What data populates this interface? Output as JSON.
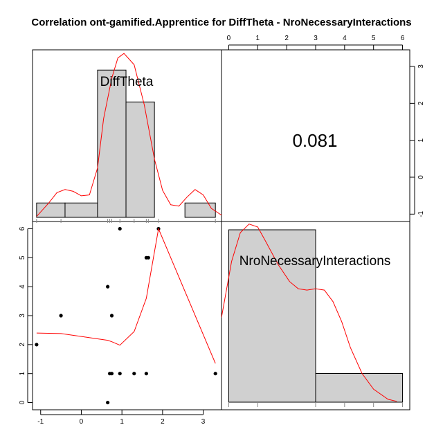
{
  "chart_data": {
    "type": "scatter-matrix",
    "title": "Correlation ont-gamified.Apprentice for DiffTheta - NroNecessaryInteractions",
    "variables": [
      "DiffTheta",
      "NroNecessaryInteractions"
    ],
    "correlation": "0.081",
    "axes": {
      "bottom": {
        "ticks": [
          -1,
          0,
          1,
          2,
          3
        ],
        "labels": [
          "-1",
          "0",
          "1",
          "2",
          "3"
        ],
        "range": [
          -1.2,
          3.45
        ]
      },
      "top": {
        "ticks": [
          0,
          1,
          2,
          3,
          4,
          5,
          6
        ],
        "labels": [
          "0",
          "1",
          "2",
          "3",
          "4",
          "5",
          "6"
        ],
        "range": [
          -0.25,
          6.25
        ]
      },
      "left": {
        "ticks": [
          0,
          1,
          2,
          3,
          4,
          5,
          6
        ],
        "labels": [
          "0",
          "1",
          "2",
          "3",
          "4",
          "5",
          "6"
        ],
        "range": [
          -0.25,
          6.25
        ]
      },
      "right": {
        "ticks": [
          -1,
          0,
          1,
          2,
          3
        ],
        "labels": [
          "-1",
          "0",
          "1",
          "2",
          "3"
        ],
        "range": [
          -1.2,
          3.45
        ]
      }
    },
    "scatter": {
      "x": [
        -1.1,
        -0.5,
        0.65,
        0.7,
        0.75,
        0.65,
        0.75,
        0.95,
        0.95,
        1.3,
        1.6,
        1.6,
        1.65,
        1.9,
        3.3
      ],
      "y": [
        2,
        3,
        0,
        1,
        3,
        4,
        1,
        1,
        6,
        1,
        1,
        5,
        5,
        6,
        1
      ]
    },
    "scatter_smooth": {
      "x": [
        -1.1,
        -0.5,
        0.65,
        0.75,
        0.95,
        1.3,
        1.6,
        1.65,
        1.9,
        3.3
      ],
      "y": [
        2.4,
        2.38,
        2.15,
        2.1,
        1.98,
        2.45,
        3.6,
        4.0,
        6.0,
        1.35
      ]
    },
    "hist_DiffTheta": {
      "breaks": [
        -1.1,
        -0.4,
        0.4,
        1.1,
        1.8,
        2.55,
        3.3
      ],
      "heights": [
        0.32,
        0.32,
        3.28,
        2.57,
        0,
        0.32
      ],
      "density": {
        "x": [
          -1.1,
          -0.8,
          -0.6,
          -0.4,
          -0.2,
          0.0,
          0.2,
          0.4,
          0.55,
          0.75,
          0.9,
          1.05,
          1.3,
          1.55,
          1.8,
          2.0,
          2.2,
          2.4,
          2.6,
          2.8,
          3.0,
          3.2,
          3.45
        ],
        "y": [
          0.02,
          0.32,
          0.55,
          0.62,
          0.58,
          0.48,
          0.5,
          1.1,
          2.2,
          3.1,
          3.55,
          3.65,
          3.4,
          2.5,
          1.3,
          0.6,
          0.28,
          0.25,
          0.45,
          0.62,
          0.5,
          0.2,
          0.05
        ]
      },
      "rug": [
        -1.1,
        -0.5,
        0.65,
        0.7,
        0.75,
        0.95,
        1.3,
        1.6,
        1.65,
        1.9,
        3.3
      ]
    },
    "hist_NroNecessaryInteractions": {
      "breaks": [
        0,
        3,
        6
      ],
      "heights": [
        6.0,
        1.0
      ],
      "density": {
        "x": [
          -0.25,
          0.1,
          0.4,
          0.7,
          1.0,
          1.3,
          1.7,
          2.1,
          2.4,
          2.7,
          3.0,
          3.3,
          3.6,
          3.9,
          4.2,
          4.6,
          5.0,
          5.5,
          5.8
        ],
        "y": [
          2.95,
          4.9,
          5.9,
          6.2,
          6.1,
          5.55,
          4.8,
          4.2,
          3.95,
          3.9,
          3.95,
          3.9,
          3.5,
          2.8,
          1.9,
          1.0,
          0.45,
          0.1,
          0.03
        ]
      },
      "rug": [
        0,
        1,
        3,
        4,
        5,
        6
      ]
    }
  }
}
